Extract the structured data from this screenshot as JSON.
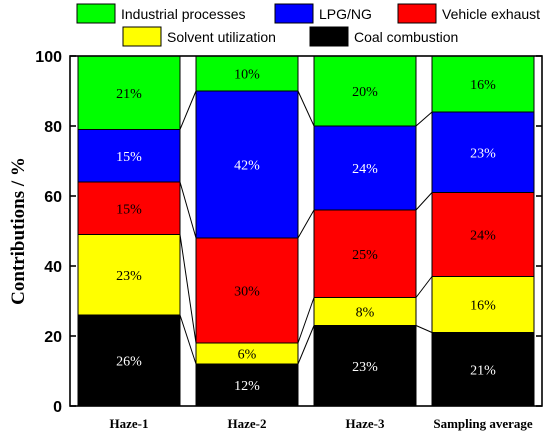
{
  "chart_data": {
    "type": "bar",
    "stacked": true,
    "ylabel": "Contributions / %",
    "xlabel": "",
    "ylim": [
      0,
      100
    ],
    "yticks": [
      0,
      20,
      40,
      60,
      80,
      100
    ],
    "categories": [
      "Haze-1",
      "Haze-2",
      "Haze-3",
      "Sampling average"
    ],
    "series": [
      {
        "name": "Coal combustion",
        "color": "#000000",
        "label_color": "#ffffff",
        "values": [
          26,
          12,
          23,
          21
        ],
        "labels": [
          "26%",
          "12%",
          "23%",
          "21%"
        ]
      },
      {
        "name": "Solvent utilization",
        "color": "#ffff00",
        "label_color": "#000000",
        "values": [
          23,
          6,
          8,
          16
        ],
        "labels": [
          "23%",
          "6%",
          "8%",
          "16%"
        ]
      },
      {
        "name": "Vehicle exhaust",
        "color": "#ff0000",
        "label_color": "#000000",
        "values": [
          15,
          30,
          25,
          24
        ],
        "labels": [
          "15%",
          "30%",
          "25%",
          "24%"
        ]
      },
      {
        "name": "LPG/NG",
        "color": "#0000ff",
        "label_color": "#ffffff",
        "values": [
          15,
          42,
          24,
          23
        ],
        "labels": [
          "15%",
          "42%",
          "24%",
          "23%"
        ]
      },
      {
        "name": "Industrial processes",
        "color": "#00ff00",
        "label_color": "#000000",
        "values": [
          21,
          10,
          20,
          16
        ],
        "labels": [
          "21%",
          "10%",
          "20%",
          "16%"
        ]
      }
    ],
    "legend": {
      "placement": "top",
      "order": [
        "Industrial processes",
        "LPG/NG",
        "Vehicle exhaust",
        "Solvent utilization",
        "Coal combustion"
      ]
    },
    "connector_lines": true,
    "grid": false
  }
}
